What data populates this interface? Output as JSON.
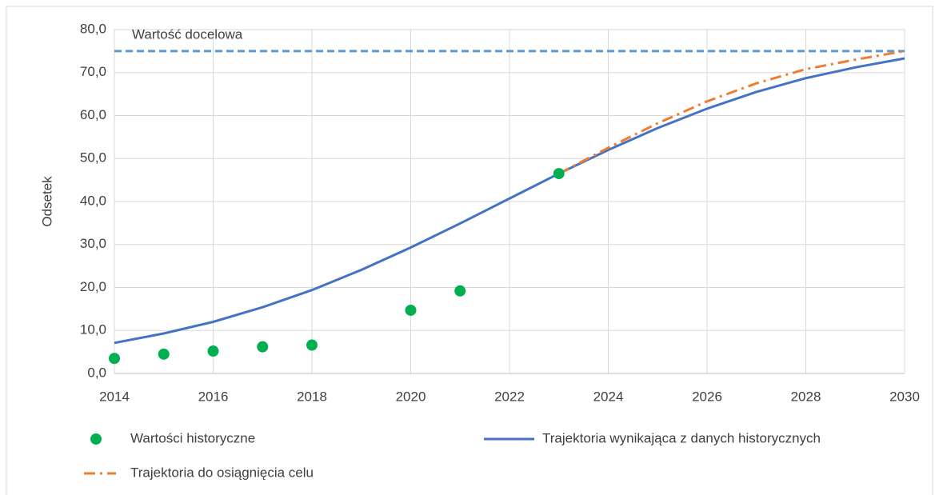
{
  "chart_data": {
    "type": "line",
    "y_label": "Odsetek",
    "xlim": [
      2014,
      2030
    ],
    "xticks": [
      2014,
      2016,
      2018,
      2020,
      2022,
      2024,
      2026,
      2028,
      2030
    ],
    "ylim": [
      0,
      80
    ],
    "yticks": [
      {
        "value": 0,
        "label": "0,0"
      },
      {
        "value": 10,
        "label": "10,0"
      },
      {
        "value": 20,
        "label": "20,0"
      },
      {
        "value": 30,
        "label": "30,0"
      },
      {
        "value": 40,
        "label": "40,0"
      },
      {
        "value": 50,
        "label": "50,0"
      },
      {
        "value": 60,
        "label": "60,0"
      },
      {
        "value": 70,
        "label": "70,0"
      },
      {
        "value": 80,
        "label": "80,0"
      }
    ],
    "grid": true,
    "legend": "bottom",
    "target_line": {
      "label": "Wartość docelowa",
      "value": 75,
      "color": "#5b9bd5"
    },
    "series": [
      {
        "name": "Wartości historyczne",
        "color": "#00b050",
        "style": "markers",
        "x": [
          2014,
          2015,
          2016,
          2017,
          2018,
          2020,
          2021,
          2023
        ],
        "values": [
          3.5,
          4.5,
          5.2,
          6.2,
          6.6,
          14.7,
          19.2,
          46.5
        ]
      },
      {
        "name": "Trajektoria wynikająca z danych historycznych",
        "color": "#4472c4",
        "style": "solid",
        "x": [
          2014,
          2015,
          2016,
          2017,
          2018,
          2019,
          2020,
          2021,
          2022,
          2023,
          2024,
          2025,
          2026,
          2027,
          2028,
          2029,
          2030
        ],
        "values": [
          7.1,
          9.3,
          12.0,
          15.4,
          19.4,
          24.1,
          29.3,
          34.9,
          40.7,
          46.5,
          52.0,
          57.1,
          61.6,
          65.5,
          68.7,
          71.2,
          73.3
        ]
      },
      {
        "name": "Trajektoria do osiągnięcia celu",
        "color": "#ed7d31",
        "style": "dashdot",
        "x": [
          2023,
          2024,
          2025,
          2026,
          2027,
          2028,
          2029,
          2030
        ],
        "values": [
          46.5,
          52.5,
          58.2,
          63.3,
          67.5,
          70.8,
          73.0,
          75.0
        ]
      }
    ]
  }
}
